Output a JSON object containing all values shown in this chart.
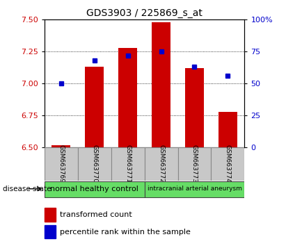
{
  "title": "GDS3903 / 225869_s_at",
  "categories": [
    "GSM663769",
    "GSM663770",
    "GSM663771",
    "GSM663772",
    "GSM663773",
    "GSM663774"
  ],
  "red_values": [
    6.52,
    7.13,
    7.28,
    7.48,
    7.12,
    6.78
  ],
  "blue_values_pct": [
    50,
    68,
    72,
    75,
    63,
    56
  ],
  "ylim_left": [
    6.5,
    7.5
  ],
  "ylim_right": [
    0,
    100
  ],
  "yticks_left": [
    6.5,
    6.75,
    7.0,
    7.25,
    7.5
  ],
  "yticks_right": [
    0,
    25,
    50,
    75,
    100
  ],
  "bar_color": "#cc0000",
  "marker_color": "#0000cc",
  "bar_width": 0.55,
  "group1_label": "normal healthy control",
  "group2_label": "intracranial arterial aneurysm",
  "group1_indices": [
    0,
    1,
    2
  ],
  "group2_indices": [
    3,
    4,
    5
  ],
  "group_band_color": "#66dd66",
  "xticklabel_bg": "#c8c8c8",
  "disease_state_label": "disease state",
  "legend1": "transformed count",
  "legend2": "percentile rank within the sample",
  "fig_width": 4.11,
  "fig_height": 3.54,
  "dpi": 100
}
